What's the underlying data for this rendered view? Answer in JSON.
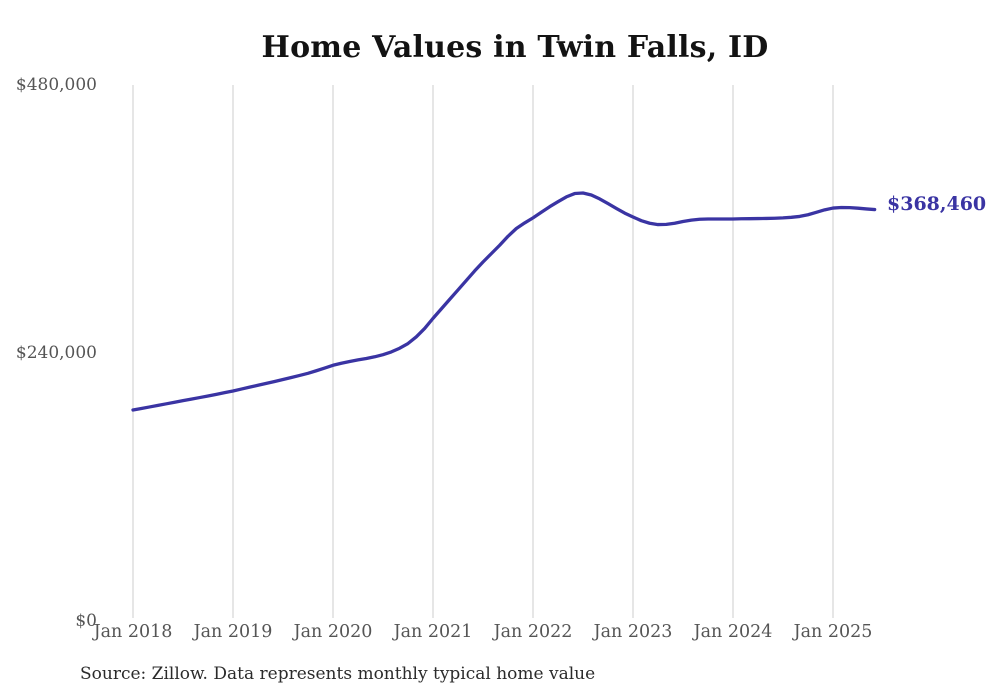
{
  "chart_data": {
    "type": "line",
    "title": "Home Values in Twin Falls, ID",
    "source_note": "Source: Zillow. Data represents monthly typical home value",
    "x_tick_labels": [
      "Jan 2018",
      "Jan 2019",
      "Jan 2020",
      "Jan 2021",
      "Jan 2022",
      "Jan 2023",
      "Jan 2024",
      "Jan 2025"
    ],
    "y_tick_labels": [
      "$0",
      "$240,000",
      "$480,000"
    ],
    "y_tick_values": [
      0,
      240000,
      480000
    ],
    "ylim": [
      0,
      480000
    ],
    "grid": "vertical-only",
    "legend": "none",
    "line_color": "#3a34a3",
    "gridline_color": "#cccccc",
    "end_label": "$368,460",
    "end_value": 368460,
    "series": [
      {
        "name": "Typical home value",
        "frequency": "monthly",
        "start_month": "2018-01",
        "end_month": "2025-06",
        "values": [
          189000,
          190300,
          191700,
          193100,
          194500,
          195900,
          197300,
          198700,
          200100,
          201500,
          203000,
          204500,
          206000,
          207700,
          209400,
          211100,
          212800,
          214500,
          216300,
          218100,
          219900,
          221800,
          224100,
          226500,
          229000,
          230800,
          232400,
          233800,
          235100,
          236600,
          238500,
          241000,
          244300,
          248500,
          254500,
          262000,
          271000,
          279500,
          288000,
          296500,
          305000,
          313500,
          321500,
          329000,
          336500,
          344500,
          351500,
          356500,
          361000,
          366000,
          371000,
          375500,
          379800,
          382800,
          383300,
          381500,
          378000,
          373800,
          369500,
          365300,
          361800,
          358500,
          356200,
          355000,
          355200,
          356200,
          357800,
          359000,
          359800,
          360000,
          360000,
          360000,
          360000,
          360200,
          360300,
          360400,
          360500,
          360700,
          361000,
          361500,
          362300,
          363800,
          366000,
          368200,
          369800,
          370300,
          370200,
          369700,
          369000,
          368460
        ]
      }
    ]
  }
}
